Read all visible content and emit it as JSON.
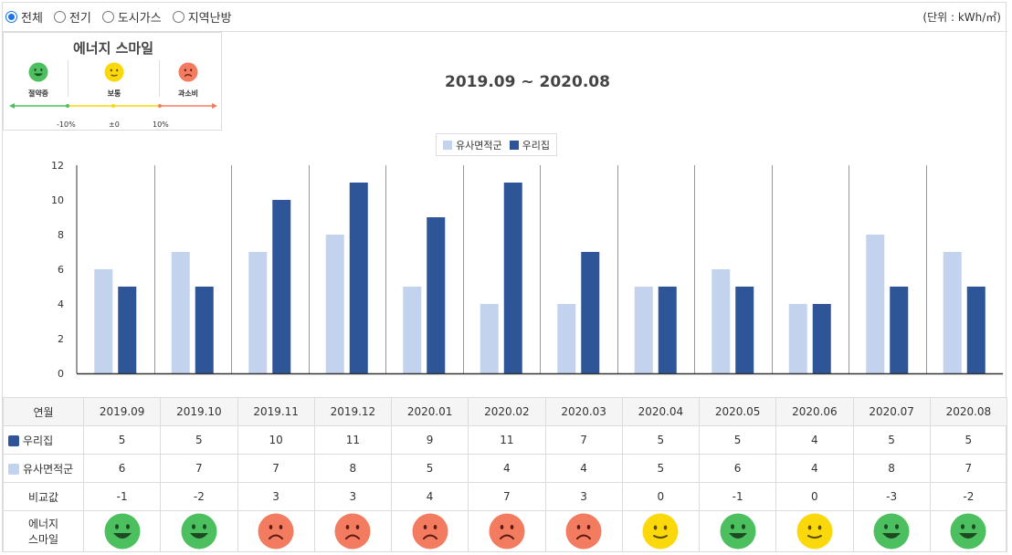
{
  "filters": {
    "options": [
      {
        "label": "전체",
        "checked": true
      },
      {
        "label": "전기",
        "checked": false
      },
      {
        "label": "도시가스",
        "checked": false
      },
      {
        "label": "지역난방",
        "checked": false
      }
    ],
    "unit": "(단위 : kWh/㎡)"
  },
  "smile": {
    "title": "에너지 스마일",
    "levels": [
      {
        "label": "절약중",
        "face": "happy-face-icon",
        "color": "#4cbf5e"
      },
      {
        "label": "보통",
        "face": "neutral-face-icon",
        "color": "#fbd80c"
      },
      {
        "label": "과소비",
        "face": "sad-face-icon",
        "color": "#f37b60"
      }
    ],
    "scale": [
      "-10%",
      "±0",
      "10%"
    ]
  },
  "colors": {
    "mine": "#2e5597",
    "similar": "#c3d3ee",
    "happy": "#4cbf5e",
    "neutral": "#fbd80c",
    "sad": "#f37b60"
  },
  "table": {
    "header_label": "연월",
    "row_mine": "우리집",
    "row_similar": "유사면적군",
    "row_diff": "비교값",
    "row_smile": [
      "에너지",
      "스마일"
    ],
    "diff": [
      "-1",
      "-2",
      "3",
      "3",
      "4",
      "7",
      "3",
      "0",
      "-1",
      "0",
      "-3",
      "-2"
    ],
    "smile": [
      "happy",
      "happy",
      "sad",
      "sad",
      "sad",
      "sad",
      "sad",
      "neutral",
      "happy",
      "neutral",
      "happy",
      "happy"
    ]
  },
  "chart_data": {
    "type": "bar",
    "title": "2019.09 ~ 2020.08",
    "categories": [
      "2019.09",
      "2019.10",
      "2019.11",
      "2019.12",
      "2020.01",
      "2020.02",
      "2020.03",
      "2020.04",
      "2020.05",
      "2020.06",
      "2020.07",
      "2020.08"
    ],
    "series": [
      {
        "name": "유사면적군",
        "values": [
          6,
          7,
          7,
          8,
          5,
          4,
          4,
          5,
          6,
          4,
          8,
          7
        ]
      },
      {
        "name": "우리집",
        "values": [
          5,
          5,
          10,
          11,
          9,
          11,
          7,
          5,
          5,
          4,
          5,
          5
        ]
      }
    ],
    "ylim": [
      0,
      12
    ],
    "yticks": [
      0,
      2,
      4,
      6,
      8,
      10,
      12
    ],
    "legend": "top-center"
  }
}
